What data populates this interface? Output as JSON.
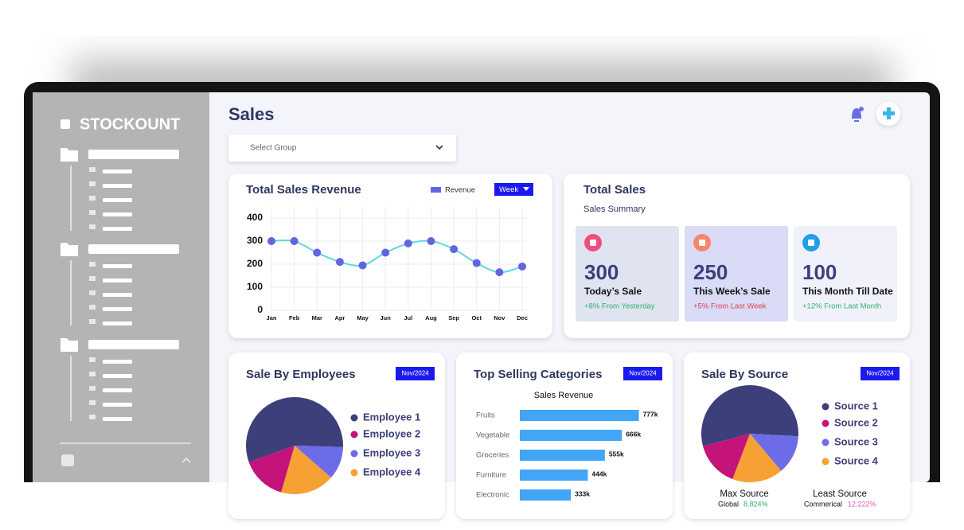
{
  "sidebar": {
    "brand": "STOCKOUNT"
  },
  "header": {
    "title": "Sales",
    "select_placeholder": "Select Group"
  },
  "total_sales": {
    "title": "Total Sales",
    "subtitle": "Sales Summary",
    "cards": [
      {
        "value": 300,
        "label": "Today’s Sale",
        "change": "+8% From Yesterday"
      },
      {
        "value": 250,
        "label": "This Week’s Sale",
        "change": "+5% From Last Week"
      },
      {
        "value": 100,
        "label": "This Month Till Date",
        "change": "+12% From Last Month"
      }
    ]
  },
  "chart_data": [
    {
      "type": "line",
      "title": "Total Sales Revenue",
      "period": "Week",
      "categories": [
        "Jan",
        "Feb",
        "Mar",
        "Apr",
        "May",
        "Jun",
        "Jul",
        "Aug",
        "Sep",
        "Oct",
        "Nov",
        "Dec"
      ],
      "series": [
        {
          "name": "Revenue",
          "color": "#6464e0",
          "line_color": "#5fd9d9",
          "values": [
            300,
            300,
            250,
            210,
            195,
            250,
            290,
            300,
            265,
            205,
            165,
            190
          ]
        }
      ],
      "ylim": [
        0,
        400
      ],
      "yticks": [
        0,
        100,
        200,
        300,
        400
      ],
      "grid": true
    },
    {
      "type": "bar",
      "orientation": "horizontal",
      "title": "Top Selling Categories",
      "badge": "Nov/2024",
      "subtitle": "Sales Revenue",
      "categories": [
        "Fruits",
        "Vegetable",
        "Groceries",
        "Furniture",
        "Electronic"
      ],
      "values": [
        777000,
        666000,
        555000,
        444000,
        333000
      ],
      "value_labels": [
        "777k",
        "666k",
        "555k",
        "444k",
        "333k"
      ],
      "color": "#42a5f5",
      "xlim": [
        0,
        800000
      ]
    },
    {
      "type": "pie",
      "title": "Sale By Employees",
      "badge": "Nov/2024",
      "categories": [
        "Employee 1",
        "Employee 2",
        "Employee 3",
        "Employee 4"
      ],
      "values": [
        56,
        15,
        11,
        18
      ],
      "colors": [
        "#3d3f7a",
        "#c4137a",
        "#6c6ce8",
        "#f7a134"
      ]
    },
    {
      "type": "pie",
      "title": "Sale By Source",
      "badge": "Nov/2024",
      "categories": [
        "Source 1",
        "Source 2",
        "Source 3",
        "Source 4"
      ],
      "values": [
        55,
        15,
        13,
        17
      ],
      "colors": [
        "#3d3f7a",
        "#c4137a",
        "#6c6ce8",
        "#f7a134"
      ]
    }
  ],
  "source_summary": {
    "max_label": "Max Source",
    "max_name": "Global",
    "max_value": "8.824%",
    "least_label": "Least Source",
    "least_name": "Commerical",
    "least_value": "12.222%"
  }
}
